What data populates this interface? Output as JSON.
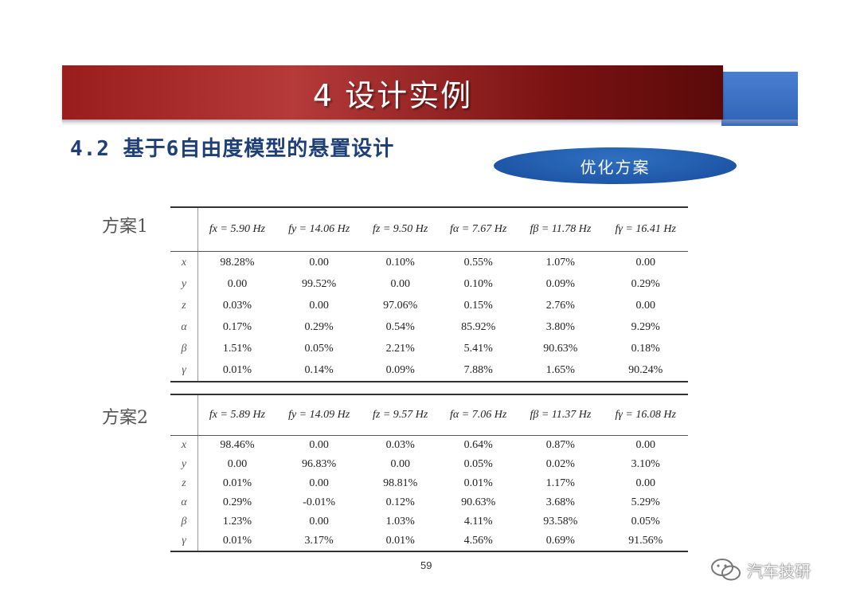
{
  "banner": {
    "title": "4   设计实例"
  },
  "section": {
    "title": "4.2  基于6自由度模型的悬置设计"
  },
  "badge": {
    "label": "优化方案"
  },
  "tables": [
    {
      "label": "方案1",
      "row_labels": [
        "x",
        "y",
        "z",
        "α",
        "β",
        "γ"
      ],
      "headers": [
        "fx = 5.90 Hz",
        "fy = 14.06 Hz",
        "fz = 9.50 Hz",
        "fα = 7.67 Hz",
        "fβ = 11.78 Hz",
        "fγ = 16.41 Hz"
      ],
      "rows": [
        [
          "98.28%",
          "0.00",
          "0.10%",
          "0.55%",
          "1.07%",
          "0.00"
        ],
        [
          "0.00",
          "99.52%",
          "0.00",
          "0.10%",
          "0.09%",
          "0.29%"
        ],
        [
          "0.03%",
          "0.00",
          "97.06%",
          "0.15%",
          "2.76%",
          "0.00"
        ],
        [
          "0.17%",
          "0.29%",
          "0.54%",
          "85.92%",
          "3.80%",
          "9.29%"
        ],
        [
          "1.51%",
          "0.05%",
          "2.21%",
          "5.41%",
          "90.63%",
          "0.18%"
        ],
        [
          "0.01%",
          "0.14%",
          "0.09%",
          "7.88%",
          "1.65%",
          "90.24%"
        ]
      ]
    },
    {
      "label": "方案2",
      "row_labels": [
        "x",
        "y",
        "z",
        "α",
        "β",
        "γ"
      ],
      "headers": [
        "fx = 5.89 Hz",
        "fy = 14.09 Hz",
        "fz = 9.57 Hz",
        "fα = 7.06 Hz",
        "fβ = 11.37 Hz",
        "fγ = 16.08 Hz"
      ],
      "rows": [
        [
          "98.46%",
          "0.00",
          "0.03%",
          "0.64%",
          "0.87%",
          "0.00"
        ],
        [
          "0.00",
          "96.83%",
          "0.00",
          "0.05%",
          "0.02%",
          "3.10%"
        ],
        [
          "0.01%",
          "0.00",
          "98.81%",
          "0.01%",
          "1.17%",
          "0.00"
        ],
        [
          "0.29%",
          "-0.01%",
          "0.12%",
          "90.63%",
          "3.68%",
          "5.29%"
        ],
        [
          "1.23%",
          "0.00",
          "1.03%",
          "4.11%",
          "93.58%",
          "0.05%"
        ],
        [
          "0.01%",
          "3.17%",
          "0.01%",
          "4.56%",
          "0.69%",
          "91.56%"
        ]
      ]
    }
  ],
  "page": {
    "number": "59"
  },
  "watermark": {
    "text": "汽车技研"
  }
}
